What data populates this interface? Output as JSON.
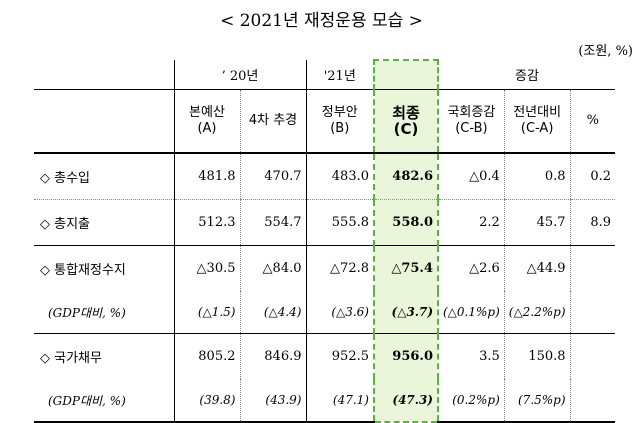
{
  "title": "< 2021년 재정운용 모습 >",
  "unit": "(조원, %)",
  "header": {
    "group_20": "’ 20년",
    "group_21": "'21년",
    "group_diff": "증감",
    "col_a": "본예산\n(A)",
    "col_4th": "4차 추경",
    "col_b": "정부안\n(B)",
    "col_c": "최종\n(C)",
    "col_cb": "국회증감\n(C-B)",
    "col_ca": "전년대비\n(C-A)",
    "col_pct": "%"
  },
  "rows": [
    {
      "label": "◇ 총수입",
      "a": "481.8",
      "e4": "470.7",
      "b": "483.0",
      "c": "482.6",
      "cb": "△0.4",
      "ca": "0.8",
      "pct": "0.2"
    },
    {
      "label": "◇ 총지출",
      "a": "512.3",
      "e4": "554.7",
      "b": "555.8",
      "c": "558.0",
      "cb": "2.2",
      "ca": "45.7",
      "pct": "8.9"
    },
    {
      "label": "◇ 통합재정수지",
      "a": "△30.5",
      "e4": "△84.0",
      "b": "△72.8",
      "c": "△75.4",
      "cb": "△2.6",
      "ca": "△44.9",
      "pct": ""
    },
    {
      "label": "(GDP대비, %)",
      "a": "(△1.5)",
      "e4": "(△4.4)",
      "b": "(△3.6)",
      "c": "(△3.7)",
      "cb": "(△0.1%p)",
      "ca": "(△2.2%p)",
      "pct": ""
    },
    {
      "label": "◇ 국가채무",
      "a": "805.2",
      "e4": "846.9",
      "b": "952.5",
      "c": "956.0",
      "cb": "3.5",
      "ca": "150.8",
      "pct": ""
    },
    {
      "label": "(GDP대비, %)",
      "a": "(39.8)",
      "e4": "(43.9)",
      "b": "(47.1)",
      "c": "(47.3)",
      "cb": "(0.2%p)",
      "ca": "(7.5%p)",
      "pct": ""
    }
  ]
}
